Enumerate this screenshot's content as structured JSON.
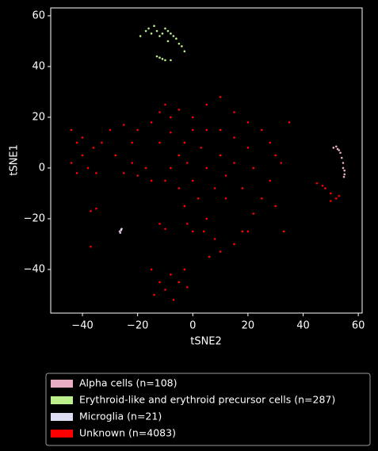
{
  "chart_data": {
    "type": "scatter",
    "x_label": "tSNE2",
    "y_label": "tSNE1",
    "xlim": [
      -51.5,
      61.4
    ],
    "ylim": [
      -57.2,
      63.1
    ],
    "xticks": [
      {
        "value": -40,
        "label": "−40"
      },
      {
        "value": -20,
        "label": "−20"
      },
      0,
      20,
      40,
      60
    ],
    "yticks": [
      {
        "value": -40,
        "label": "−40"
      },
      {
        "value": -20,
        "label": "−20"
      },
      0,
      20,
      40,
      60
    ],
    "legend_position": "below",
    "series": [
      {
        "name": "Alpha cells (n=108)",
        "color": "#e8adc2",
        "x": [
          51,
          52,
          53,
          53.5,
          54,
          54.5,
          54.5,
          55,
          55,
          54.8,
          -26.5,
          52.5
        ],
        "values": [
          8,
          8.5,
          7,
          6,
          4,
          2,
          0,
          -1,
          -2.5,
          -3.5,
          -25,
          7.5
        ]
      },
      {
        "name": "Erythroid-like and erythroid precursor cells (n=287)",
        "color": "#bdf08c",
        "x": [
          -19,
          -17,
          -16,
          -14,
          -13,
          -12,
          -11,
          -10,
          -9,
          -8,
          -7,
          -6,
          -5,
          -4,
          -3,
          -13,
          -12,
          -11,
          -10,
          -8,
          -15,
          -9
        ],
        "values": [
          52,
          54,
          55,
          56,
          54,
          52,
          53,
          55,
          54,
          53,
          52,
          51,
          49,
          48,
          46,
          44,
          43.5,
          43,
          42.5,
          42.5,
          53,
          50
        ]
      },
      {
        "name": "Microglia (n=21)",
        "color": "#dcdcf2",
        "x": [
          -26,
          -26.3,
          -25.8
        ],
        "values": [
          -24.5,
          -25.5,
          -24
        ]
      },
      {
        "name": "Unknown (n=4083)",
        "color": "#ff0000",
        "x": [
          0,
          5,
          10,
          15,
          20,
          25,
          28,
          30,
          28,
          25,
          22,
          18,
          15,
          10,
          8,
          5,
          2,
          0,
          -2,
          -3,
          0,
          5,
          10,
          15,
          20,
          22,
          18,
          12,
          8,
          5,
          10,
          15,
          12,
          3,
          -5,
          -8,
          -5,
          -10,
          -12,
          -8,
          30,
          32,
          35,
          33,
          4,
          20,
          -3,
          6,
          -44,
          -42,
          -40,
          -38,
          -35,
          -36,
          -33,
          -40,
          -44,
          -42,
          -30,
          -25,
          -20,
          -15,
          -22,
          -28,
          -25,
          -20,
          -17,
          -22,
          -15,
          -10,
          -8,
          -5,
          -12,
          -15,
          -12,
          -10,
          -8,
          -5,
          -3,
          -14,
          -7,
          -2,
          -37,
          -35,
          -37,
          -12,
          -10,
          -2,
          0,
          45,
          47,
          48,
          50,
          52,
          53,
          50
        ],
        "values": [
          20,
          25,
          28,
          22,
          18,
          15,
          10,
          5,
          -5,
          -12,
          -18,
          -25,
          -30,
          -33,
          -28,
          -20,
          -12,
          -5,
          2,
          10,
          15,
          15,
          15,
          12,
          8,
          0,
          -8,
          -12,
          -8,
          0,
          5,
          2,
          -3,
          8,
          5,
          0,
          -8,
          -5,
          10,
          14,
          -15,
          2,
          18,
          -25,
          -25,
          -25,
          -15,
          -35,
          15,
          10,
          5,
          0,
          -2,
          8,
          10,
          12,
          2,
          -2,
          15,
          17,
          15,
          18,
          10,
          5,
          -2,
          -3,
          0,
          2,
          -5,
          25,
          20,
          23,
          22,
          -40,
          -45,
          -48,
          -42,
          -45,
          -40,
          -50,
          -52,
          -47,
          -17,
          -16,
          -31,
          -22,
          -24,
          -22,
          -25,
          -6,
          -7,
          -8,
          -10,
          -12,
          -11,
          -13
        ]
      }
    ]
  }
}
